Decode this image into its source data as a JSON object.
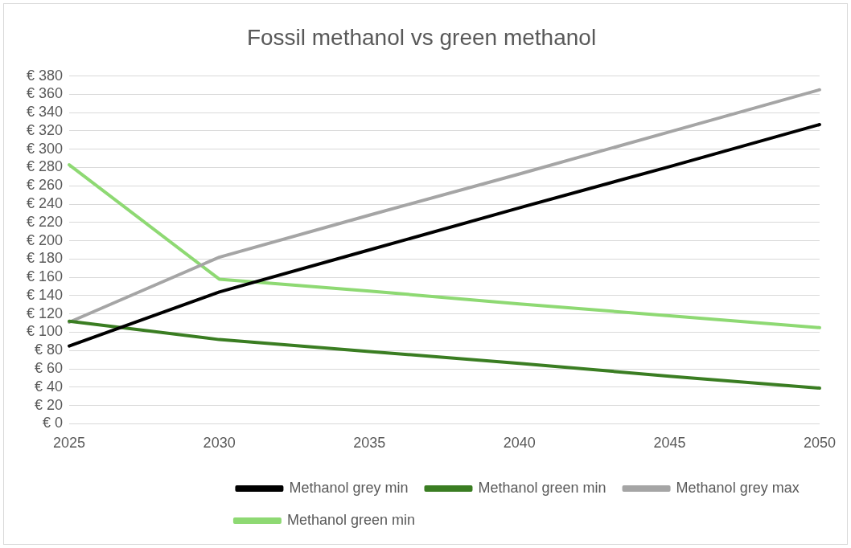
{
  "chart_data": {
    "type": "line",
    "title": "Fossil methanol vs green methanol",
    "categories": [
      "2025",
      "2030",
      "2035",
      "2040",
      "2045",
      "2050"
    ],
    "series": [
      {
        "name": "Methanol grey min",
        "color": "#000000",
        "values": [
          85,
          144,
          190,
          236,
          281,
          327
        ]
      },
      {
        "name": "Methanol green min",
        "color": "#3a7d22",
        "values": [
          112,
          92,
          79,
          66,
          52,
          39
        ]
      },
      {
        "name": "Methanol grey max",
        "color": "#a5a5a5",
        "values": [
          111,
          182,
          228,
          273,
          319,
          365
        ]
      },
      {
        "name": "Methanol green min",
        "color": "#8ed973",
        "values": [
          283,
          158,
          145,
          131,
          118,
          105
        ]
      }
    ],
    "ylim": [
      0,
      380
    ],
    "yticks": [
      {
        "value": 0,
        "label": "€ 0"
      },
      {
        "value": 20,
        "label": "€ 20"
      },
      {
        "value": 40,
        "label": "€ 40"
      },
      {
        "value": 60,
        "label": "€ 60"
      },
      {
        "value": 80,
        "label": "€ 80"
      },
      {
        "value": 100,
        "label": "€ 100"
      },
      {
        "value": 120,
        "label": "€ 120"
      },
      {
        "value": 140,
        "label": "€ 140"
      },
      {
        "value": 160,
        "label": "€ 160"
      },
      {
        "value": 180,
        "label": "€ 180"
      },
      {
        "value": 200,
        "label": "€ 200"
      },
      {
        "value": 220,
        "label": "€ 220"
      },
      {
        "value": 240,
        "label": "€ 240"
      },
      {
        "value": 260,
        "label": "€ 260"
      },
      {
        "value": 280,
        "label": "€ 280"
      },
      {
        "value": 300,
        "label": "€ 300"
      },
      {
        "value": 320,
        "label": "€ 320"
      },
      {
        "value": 340,
        "label": "€ 340"
      },
      {
        "value": 360,
        "label": "€ 360"
      },
      {
        "value": 380,
        "label": "€ 380"
      }
    ],
    "grid": "y",
    "legend": "bottom",
    "marker": "none",
    "line_style": "solid"
  }
}
